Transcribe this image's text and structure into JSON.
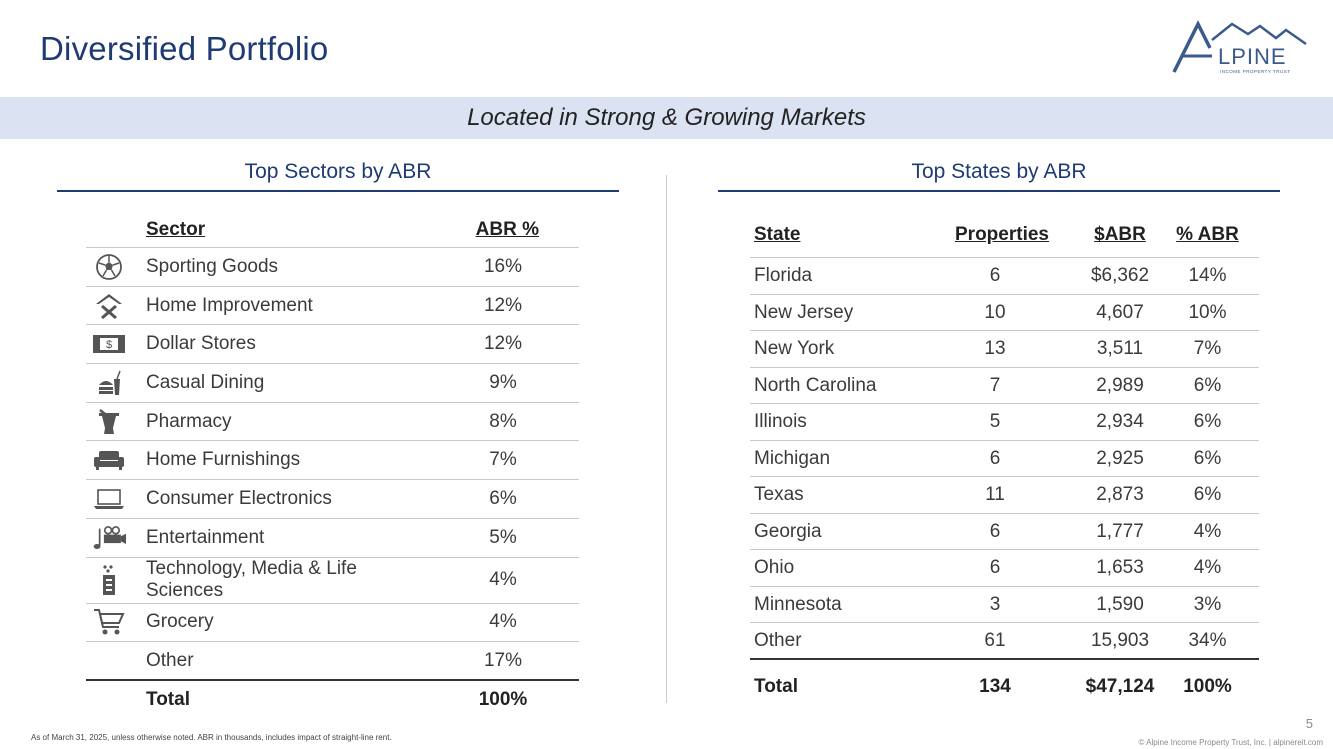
{
  "title": "Diversified Portfolio",
  "logo": {
    "text": "LPINE",
    "subtext": "INCOME PROPERTY TRUST"
  },
  "banner": "Located in Strong & Growing Markets",
  "sectors": {
    "title": "Top Sectors by ABR",
    "headers": {
      "sector": "Sector",
      "abr": "ABR %"
    },
    "rows": [
      {
        "icon": "soccer-ball-icon",
        "name": "Sporting Goods",
        "pct": "16%"
      },
      {
        "icon": "tools-icon",
        "name": "Home Improvement",
        "pct": "12%"
      },
      {
        "icon": "dollar-bill-icon",
        "name": "Dollar Stores",
        "pct": "12%"
      },
      {
        "icon": "fast-food-icon",
        "name": "Casual Dining",
        "pct": "9%"
      },
      {
        "icon": "mortar-pestle-icon",
        "name": "Pharmacy",
        "pct": "8%"
      },
      {
        "icon": "sofa-icon",
        "name": "Home Furnishings",
        "pct": "7%"
      },
      {
        "icon": "laptop-icon",
        "name": "Consumer Electronics",
        "pct": "6%"
      },
      {
        "icon": "camera-music-icon",
        "name": "Entertainment",
        "pct": "5%"
      },
      {
        "icon": "lab-device-icon",
        "name": "Technology, Media & Life Sciences",
        "pct": "4%"
      },
      {
        "icon": "shopping-cart-icon",
        "name": "Grocery",
        "pct": "4%"
      },
      {
        "icon": "",
        "name": "Other",
        "pct": "17%"
      }
    ],
    "total": {
      "name": "Total",
      "pct": "100%"
    }
  },
  "states": {
    "title": "Top States by ABR",
    "headers": {
      "state": "State",
      "properties": "Properties",
      "abr": "$ABR",
      "pct": "% ABR"
    },
    "rows": [
      {
        "state": "Florida",
        "properties": "6",
        "abr": "$6,362",
        "pct": "14%"
      },
      {
        "state": "New Jersey",
        "properties": "10",
        "abr": "4,607",
        "pct": "10%"
      },
      {
        "state": "New York",
        "properties": "13",
        "abr": "3,511",
        "pct": "7%"
      },
      {
        "state": "North Carolina",
        "properties": "7",
        "abr": "2,989",
        "pct": "6%"
      },
      {
        "state": "Illinois",
        "properties": "5",
        "abr": "2,934",
        "pct": "6%"
      },
      {
        "state": "Michigan",
        "properties": "6",
        "abr": "2,925",
        "pct": "6%"
      },
      {
        "state": "Texas",
        "properties": "11",
        "abr": "2,873",
        "pct": "6%"
      },
      {
        "state": "Georgia",
        "properties": "6",
        "abr": "1,777",
        "pct": "4%"
      },
      {
        "state": "Ohio",
        "properties": "6",
        "abr": "1,653",
        "pct": "4%"
      },
      {
        "state": "Minnesota",
        "properties": "3",
        "abr": "1,590",
        "pct": "3%"
      },
      {
        "state": "Other",
        "properties": "61",
        "abr": "15,903",
        "pct": "34%"
      }
    ],
    "total": {
      "state": "Total",
      "properties": "134",
      "abr": "$47,124",
      "pct": "100%"
    }
  },
  "footnote": "As of March 31, 2025, unless otherwise noted. ABR in thousands, includes impact of straight-line rent.",
  "page_number": "5",
  "copyright": "© Alpine Income Property Trust, Inc.  |  alpinereit.com",
  "colors": {
    "brand": "#1f3b73",
    "banner": "#dbe3f2",
    "logo": "#3a5a8c"
  }
}
